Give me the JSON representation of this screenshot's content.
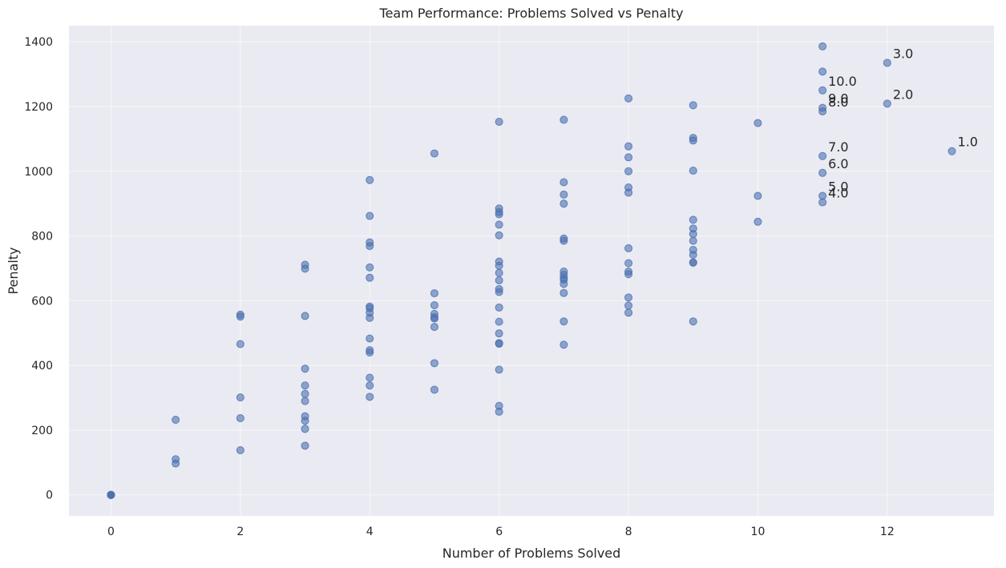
{
  "chart_data": {
    "type": "scatter",
    "title": "Team Performance: Problems Solved vs Penalty",
    "xlabel": "Number of Problems Solved",
    "ylabel": "Penalty",
    "xlim": [
      -0.65,
      13.65
    ],
    "ylim": [
      -65,
      1450
    ],
    "xticks": [
      0,
      2,
      4,
      6,
      8,
      10,
      12
    ],
    "yticks": [
      0,
      200,
      400,
      600,
      800,
      1000,
      1200,
      1400
    ],
    "grid": true,
    "point_color": "#4C72B0",
    "background_color": "#EAEAF2",
    "points": [
      [
        0,
        0
      ],
      [
        0,
        0
      ],
      [
        0,
        0
      ],
      [
        0,
        0
      ],
      [
        0,
        0
      ],
      [
        0,
        0
      ],
      [
        1,
        232
      ],
      [
        1,
        110
      ],
      [
        1,
        97
      ],
      [
        2,
        557
      ],
      [
        2,
        551
      ],
      [
        2,
        466
      ],
      [
        2,
        301
      ],
      [
        2,
        237
      ],
      [
        2,
        138
      ],
      [
        3,
        711
      ],
      [
        3,
        699
      ],
      [
        3,
        553
      ],
      [
        3,
        390
      ],
      [
        3,
        338
      ],
      [
        3,
        312
      ],
      [
        3,
        290
      ],
      [
        3,
        243
      ],
      [
        3,
        229
      ],
      [
        3,
        204
      ],
      [
        3,
        152
      ],
      [
        4,
        973
      ],
      [
        4,
        862
      ],
      [
        4,
        780
      ],
      [
        4,
        769
      ],
      [
        4,
        703
      ],
      [
        4,
        671
      ],
      [
        4,
        582
      ],
      [
        4,
        577
      ],
      [
        4,
        563
      ],
      [
        4,
        547
      ],
      [
        4,
        483
      ],
      [
        4,
        447
      ],
      [
        4,
        440
      ],
      [
        4,
        362
      ],
      [
        4,
        338
      ],
      [
        4,
        303
      ],
      [
        5,
        1055
      ],
      [
        5,
        623
      ],
      [
        5,
        586
      ],
      [
        5,
        559
      ],
      [
        5,
        549
      ],
      [
        5,
        545
      ],
      [
        5,
        519
      ],
      [
        5,
        407
      ],
      [
        5,
        325
      ],
      [
        6,
        1153
      ],
      [
        6,
        885
      ],
      [
        6,
        874
      ],
      [
        6,
        867
      ],
      [
        6,
        835
      ],
      [
        6,
        802
      ],
      [
        6,
        721
      ],
      [
        6,
        708
      ],
      [
        6,
        686
      ],
      [
        6,
        663
      ],
      [
        6,
        636
      ],
      [
        6,
        627
      ],
      [
        6,
        579
      ],
      [
        6,
        535
      ],
      [
        6,
        499
      ],
      [
        6,
        469
      ],
      [
        6,
        467
      ],
      [
        6,
        387
      ],
      [
        6,
        275
      ],
      [
        6,
        257
      ],
      [
        7,
        1159
      ],
      [
        7,
        966
      ],
      [
        7,
        928
      ],
      [
        7,
        900
      ],
      [
        7,
        792
      ],
      [
        7,
        785
      ],
      [
        7,
        690
      ],
      [
        7,
        680
      ],
      [
        7,
        670
      ],
      [
        7,
        665
      ],
      [
        7,
        652
      ],
      [
        7,
        624
      ],
      [
        7,
        536
      ],
      [
        7,
        464
      ],
      [
        8,
        1225
      ],
      [
        8,
        1077
      ],
      [
        8,
        1043
      ],
      [
        8,
        1000
      ],
      [
        8,
        950
      ],
      [
        8,
        934
      ],
      [
        8,
        762
      ],
      [
        8,
        716
      ],
      [
        8,
        690
      ],
      [
        8,
        682
      ],
      [
        8,
        610
      ],
      [
        8,
        585
      ],
      [
        8,
        563
      ],
      [
        9,
        1204
      ],
      [
        9,
        1103
      ],
      [
        9,
        1095
      ],
      [
        9,
        1002
      ],
      [
        9,
        850
      ],
      [
        9,
        823
      ],
      [
        9,
        806
      ],
      [
        9,
        785
      ],
      [
        9,
        757
      ],
      [
        9,
        742
      ],
      [
        9,
        718
      ],
      [
        9,
        718
      ],
      [
        9,
        536
      ],
      [
        10,
        1149
      ],
      [
        10,
        924
      ],
      [
        10,
        844
      ],
      [
        11,
        1386
      ],
      [
        11,
        1308
      ],
      [
        11,
        1250
      ],
      [
        11,
        1196
      ],
      [
        11,
        1185
      ],
      [
        11,
        1047
      ],
      [
        11,
        995
      ],
      [
        11,
        924
      ],
      [
        11,
        904
      ],
      [
        12,
        1335
      ],
      [
        12,
        1209
      ],
      [
        13,
        1062
      ]
    ],
    "annotations": [
      {
        "x": 13,
        "y": 1062,
        "text": "1.0"
      },
      {
        "x": 12,
        "y": 1209,
        "text": "2.0"
      },
      {
        "x": 12,
        "y": 1335,
        "text": "3.0"
      },
      {
        "x": 11,
        "y": 904,
        "text": "4.0"
      },
      {
        "x": 11,
        "y": 924,
        "text": "5.0"
      },
      {
        "x": 11,
        "y": 995,
        "text": "6.0"
      },
      {
        "x": 11,
        "y": 1047,
        "text": "7.0"
      },
      {
        "x": 11,
        "y": 1185,
        "text": "8.0"
      },
      {
        "x": 11,
        "y": 1196,
        "text": "9.0"
      },
      {
        "x": 11,
        "y": 1250,
        "text": "10.0"
      }
    ]
  }
}
